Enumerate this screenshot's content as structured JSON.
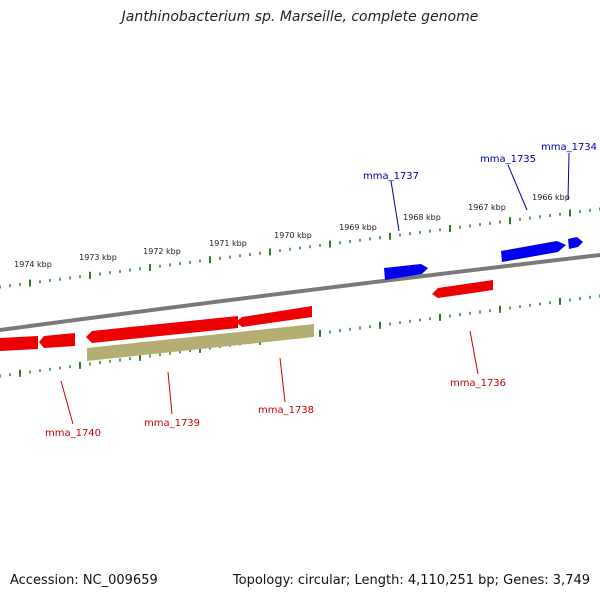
{
  "title": "Janthinobacterium sp. Marseille, complete genome",
  "footer": {
    "accession": "Accession: NC_009659",
    "summary": "Topology: circular; Length: 4,110,251 bp; Genes: 3,749"
  },
  "colors": {
    "forward_gene": "#0000ee",
    "reverse_gene": "#ee0000",
    "pseudo_gene": "#b5ae73",
    "backbone": "#7a7a7a",
    "ticks": "#2e7d2e",
    "forward_label": "#0000aa",
    "reverse_label": "#cc0000"
  },
  "ruler": {
    "unit": "kbp",
    "labels": [
      "1966 kbp",
      "1967 kbp",
      "1968 kbp",
      "1969 kbp",
      "1970 kbp",
      "1971 kbp",
      "1972 kbp",
      "1973 kbp",
      "1974 kbp"
    ]
  },
  "genes": [
    {
      "name": "mma_1734",
      "strand": "+"
    },
    {
      "name": "mma_1735",
      "strand": "+"
    },
    {
      "name": "mma_1737",
      "strand": "+"
    },
    {
      "name": "mma_1736",
      "strand": "-"
    },
    {
      "name": "mma_1738",
      "strand": "-"
    },
    {
      "name": "mma_1739",
      "strand": "-",
      "pseudo": true
    },
    {
      "name": "mma_1740",
      "strand": "-"
    }
  ]
}
